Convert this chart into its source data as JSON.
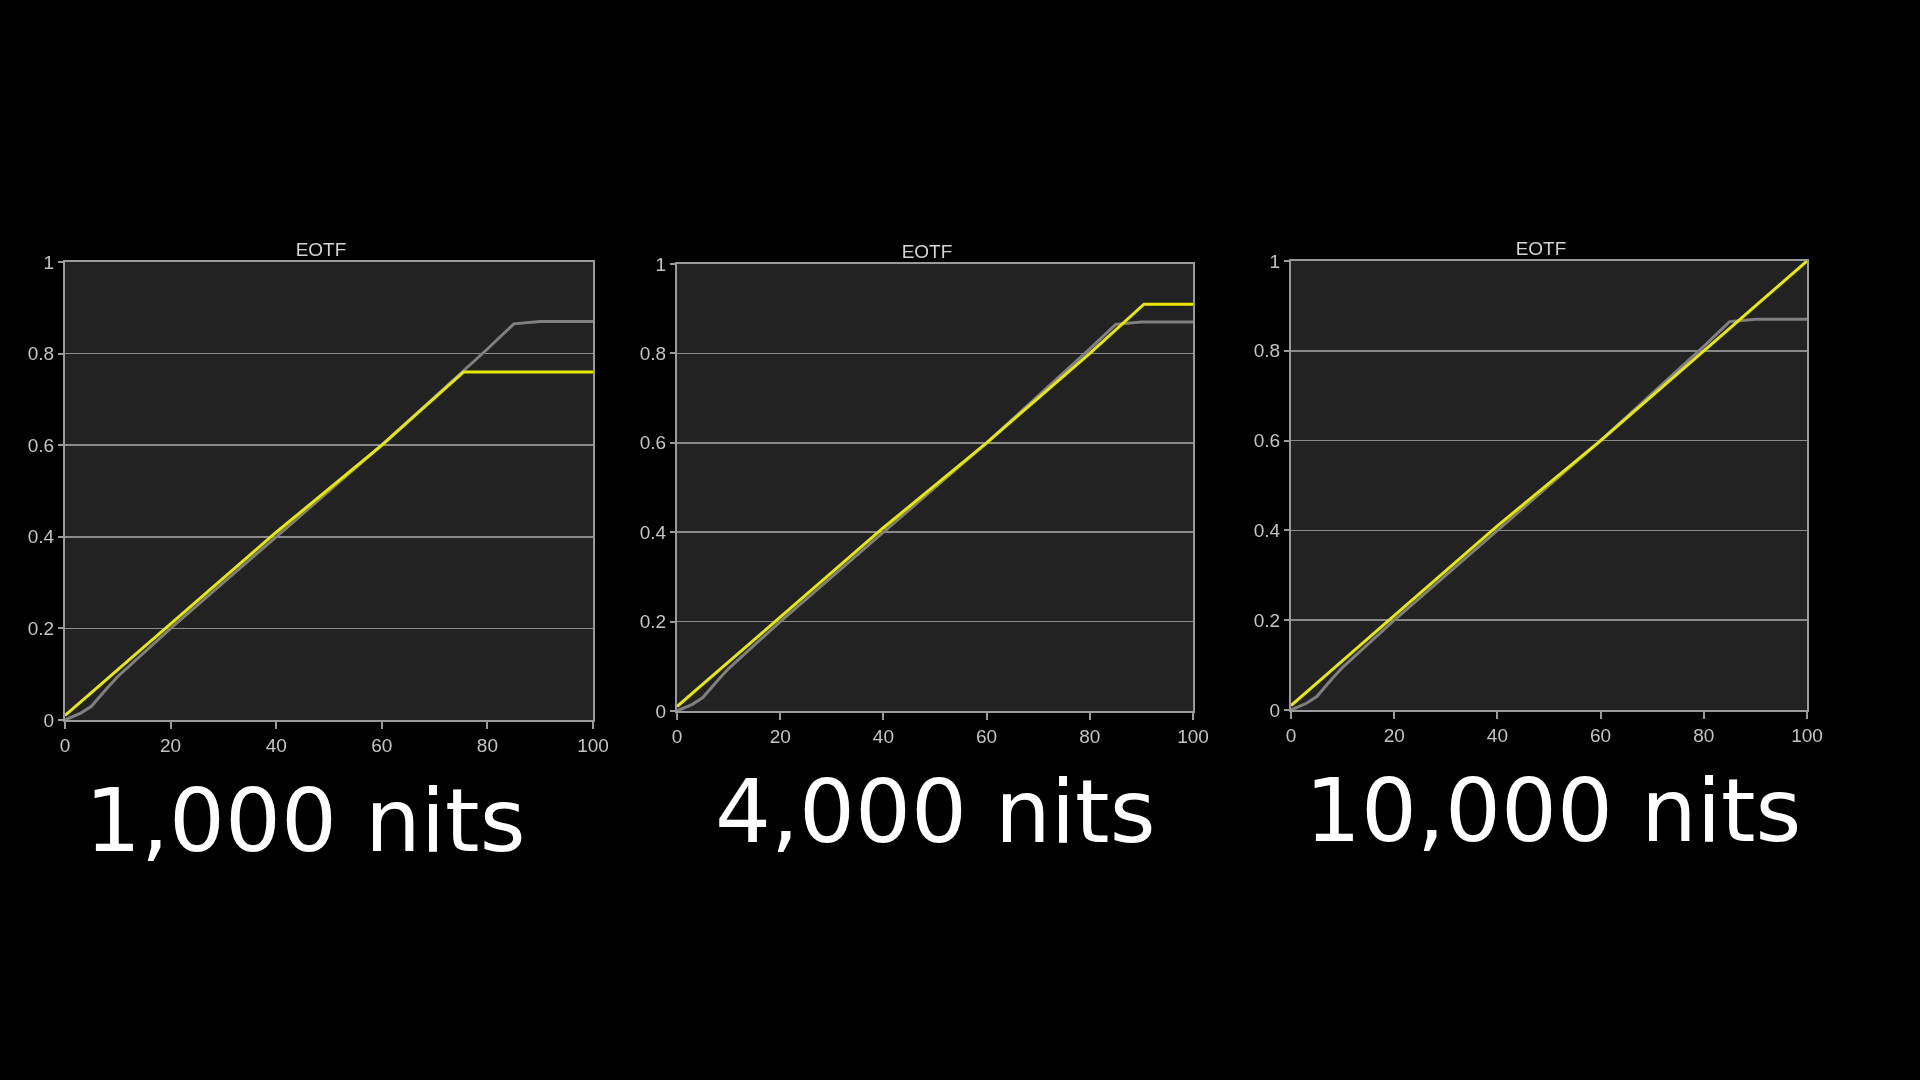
{
  "chart_data": [
    {
      "type": "line",
      "title": "EOTF",
      "annotations": [
        "1,000 nits"
      ],
      "series": [
        {
          "color": "#7f7f7f",
          "x": [
            0,
            3,
            5,
            8,
            10,
            20,
            40,
            60,
            80,
            85,
            90,
            100
          ],
          "values": [
            0,
            0.015,
            0.03,
            0.07,
            0.095,
            0.2,
            0.4,
            0.6,
            0.81,
            0.865,
            0.87,
            0.87
          ]
        },
        {
          "color": "#e8e800",
          "x": [
            0,
            5,
            10,
            20,
            40,
            60,
            75.5,
            100
          ],
          "values": [
            0.01,
            0.06,
            0.11,
            0.21,
            0.41,
            0.6,
            0.76,
            0.76
          ]
        }
      ],
      "xlim": [
        0,
        100
      ],
      "xticks": [
        0,
        20,
        40,
        60,
        80,
        100
      ],
      "ylim": [
        0,
        1
      ],
      "yticks": [
        0,
        0.2,
        0.4,
        0.6,
        0.8,
        1
      ],
      "grid": "y"
    },
    {
      "type": "line",
      "title": "EOTF",
      "annotations": [
        "4,000 nits"
      ],
      "series": [
        {
          "color": "#7f7f7f",
          "x": [
            0,
            3,
            5,
            8,
            10,
            20,
            40,
            60,
            80,
            85,
            90,
            100
          ],
          "values": [
            0,
            0.015,
            0.03,
            0.07,
            0.095,
            0.2,
            0.4,
            0.6,
            0.81,
            0.865,
            0.87,
            0.87
          ]
        },
        {
          "color": "#e8e800",
          "x": [
            0,
            5,
            10,
            20,
            40,
            60,
            80,
            90.5,
            100
          ],
          "values": [
            0.01,
            0.06,
            0.11,
            0.21,
            0.41,
            0.6,
            0.8,
            0.91,
            0.91
          ]
        }
      ],
      "xlim": [
        0,
        100
      ],
      "xticks": [
        0,
        20,
        40,
        60,
        80,
        100
      ],
      "ylim": [
        0,
        1
      ],
      "yticks": [
        0,
        0.2,
        0.4,
        0.6,
        0.8,
        1
      ],
      "grid": "y"
    },
    {
      "type": "line",
      "title": "EOTF",
      "annotations": [
        "10,000 nits"
      ],
      "series": [
        {
          "color": "#7f7f7f",
          "x": [
            0,
            3,
            5,
            8,
            10,
            20,
            40,
            60,
            80,
            85,
            90,
            100
          ],
          "values": [
            0,
            0.015,
            0.03,
            0.07,
            0.095,
            0.2,
            0.4,
            0.6,
            0.81,
            0.865,
            0.87,
            0.87
          ]
        },
        {
          "color": "#e8e800",
          "x": [
            0,
            5,
            10,
            20,
            40,
            60,
            80,
            100
          ],
          "values": [
            0.01,
            0.06,
            0.11,
            0.21,
            0.41,
            0.6,
            0.8,
            1
          ]
        }
      ],
      "xlim": [
        0,
        100
      ],
      "xticks": [
        0,
        20,
        40,
        60,
        80,
        100
      ],
      "ylim": [
        0,
        1
      ],
      "yticks": [
        0,
        0.2,
        0.4,
        0.6,
        0.8,
        1
      ],
      "grid": "y"
    }
  ]
}
